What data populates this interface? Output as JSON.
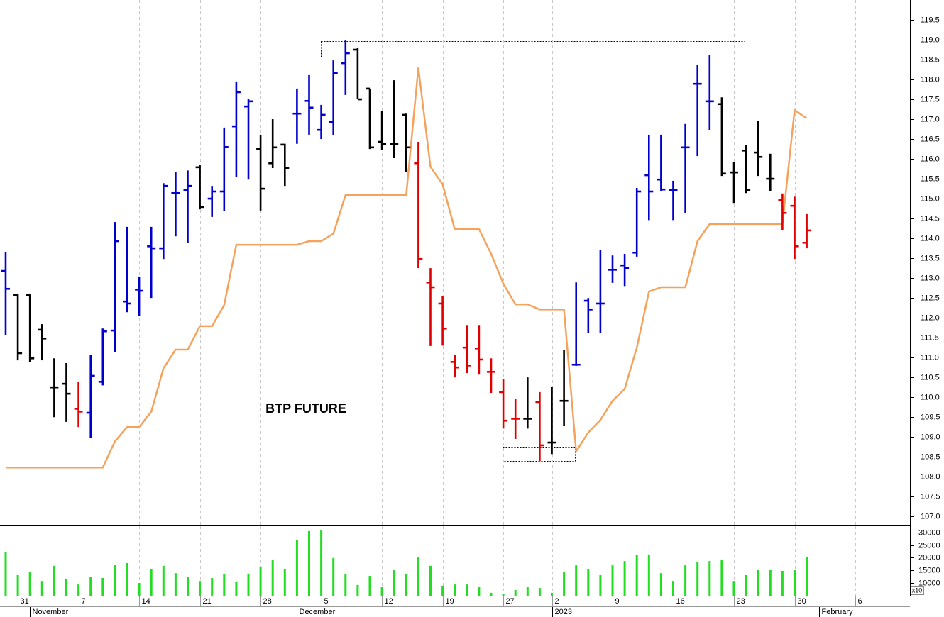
{
  "chart_data": {
    "type": "ohlc",
    "annotation": "BTP FUTURE",
    "categories": [
      null,
      "31",
      null,
      null,
      null,
      null,
      "7",
      null,
      null,
      null,
      null,
      "14",
      null,
      null,
      null,
      null,
      "21",
      null,
      null,
      null,
      null,
      "28",
      null,
      null,
      null,
      null,
      "5",
      null,
      null,
      null,
      null,
      "12",
      null,
      null,
      null,
      null,
      "19",
      null,
      null,
      null,
      null,
      "27",
      null,
      null,
      null,
      "2",
      null,
      null,
      null,
      null,
      "9",
      null,
      null,
      null,
      null,
      "16",
      null,
      null,
      null,
      null,
      "23",
      null,
      null,
      null,
      null,
      "30",
      null,
      null,
      null,
      null,
      "6"
    ],
    "month_labels": [
      null,
      null,
      "November",
      null,
      null,
      null,
      null,
      null,
      null,
      null,
      null,
      null,
      null,
      null,
      null,
      null,
      null,
      null,
      null,
      null,
      null,
      null,
      null,
      null,
      "December",
      null,
      null,
      null,
      null,
      null,
      null,
      null,
      null,
      null,
      null,
      null,
      null,
      null,
      null,
      null,
      null,
      null,
      null,
      null,
      null,
      "2023",
      null,
      null,
      null,
      null,
      null,
      null,
      null,
      null,
      null,
      null,
      null,
      null,
      null,
      null,
      null,
      null,
      null,
      null,
      null,
      null,
      null,
      "February",
      null,
      null,
      null
    ],
    "open": [
      113.18,
      112.57,
      112.57,
      111.7,
      110.25,
      110.34,
      109.71,
      109.61,
      110.39,
      111.68,
      112.41,
      112.71,
      113.8,
      113.75,
      115.14,
      115.21,
      115.79,
      115.0,
      115.18,
      116.82,
      117.32,
      116.25,
      115.89,
      116.36,
      117.14,
      117.46,
      116.73,
      116.93,
      118.41,
      118.75,
      117.77,
      116.43,
      116.38,
      117.11,
      115.89,
      112.89,
      112.36,
      110.89,
      111.25,
      111.23,
      110.64,
      110.13,
      109.46,
      109.46,
      109.88,
      108.86,
      109.91,
      110.82,
      112.43,
      112.36,
      113.21,
      113.32,
      113.64,
      115.59,
      115.48,
      115.21,
      116.29,
      117.89,
      117.45,
      117.38,
      115.66,
      116.21,
      116.16,
      115.5,
      114.96,
      114.82,
      113.89,
      null,
      null,
      null,
      null
    ],
    "high": [
      113.66,
      112.59,
      112.59,
      111.84,
      110.98,
      110.86,
      110.39,
      111.07,
      111.73,
      114.41,
      114.29,
      113.04,
      114.29,
      115.39,
      115.68,
      115.71,
      115.84,
      115.32,
      116.79,
      117.95,
      117.5,
      116.61,
      117.0,
      116.38,
      117.77,
      118.11,
      117.36,
      118.48,
      118.98,
      118.79,
      117.77,
      117.2,
      117.98,
      117.14,
      116.43,
      113.25,
      112.54,
      111.07,
      111.82,
      111.82,
      110.98,
      110.45,
      109.95,
      110.5,
      110.13,
      110.27,
      111.2,
      112.89,
      112.5,
      113.71,
      113.57,
      113.61,
      115.27,
      116.61,
      116.61,
      115.45,
      116.88,
      118.36,
      118.61,
      117.55,
      115.93,
      116.34,
      116.96,
      116.13,
      115.13,
      115.05,
      114.61,
      null,
      null,
      null,
      null
    ],
    "low": [
      111.57,
      110.93,
      110.89,
      110.93,
      109.5,
      109.38,
      109.25,
      108.98,
      110.3,
      111.13,
      112.14,
      112.05,
      112.5,
      113.48,
      114.05,
      113.88,
      114.73,
      114.54,
      114.68,
      115.55,
      115.48,
      114.7,
      115.77,
      115.32,
      116.38,
      116.61,
      116.5,
      116.59,
      117.61,
      117.5,
      116.25,
      116.23,
      116.02,
      115.68,
      113.25,
      111.29,
      111.3,
      110.5,
      110.61,
      110.57,
      110.11,
      109.21,
      108.95,
      109.21,
      108.39,
      108.57,
      109.29,
      110.79,
      111.61,
      111.61,
      112.88,
      112.8,
      113.54,
      114.46,
      115.18,
      114.46,
      114.64,
      116.07,
      116.73,
      115.57,
      114.89,
      115.14,
      115.57,
      115.18,
      114.2,
      113.48,
      113.75,
      null,
      null,
      null,
      null
    ],
    "close": [
      112.73,
      111.11,
      110.98,
      111.48,
      110.25,
      110.09,
      109.64,
      110.54,
      111.66,
      113.93,
      112.36,
      112.68,
      113.75,
      115.32,
      115.14,
      115.32,
      114.79,
      115.18,
      116.3,
      117.68,
      117.45,
      115.25,
      116.29,
      115.77,
      117.14,
      117.29,
      117.11,
      118.16,
      118.66,
      117.5,
      116.29,
      116.38,
      116.38,
      116.29,
      113.48,
      112.77,
      111.73,
      110.75,
      110.8,
      110.95,
      110.64,
      109.41,
      109.46,
      109.46,
      108.79,
      108.86,
      109.91,
      110.82,
      112.21,
      112.36,
      113.21,
      113.25,
      115.18,
      115.18,
      115.23,
      115.21,
      116.29,
      117.89,
      117.45,
      115.63,
      115.66,
      115.21,
      116.05,
      115.5,
      114.64,
      113.8,
      114.2,
      null,
      null,
      null,
      null
    ],
    "bar_colors": [
      "#0000cc",
      "#000000",
      "#000000",
      "#000000",
      "#000000",
      "#000000",
      "#e00000",
      "#0000cc",
      "#0000cc",
      "#0000cc",
      "#0000cc",
      "#0000cc",
      "#0000cc",
      "#0000cc",
      "#0000cc",
      "#0000cc",
      "#000000",
      "#0000cc",
      "#0000cc",
      "#0000cc",
      "#0000cc",
      "#000000",
      "#000000",
      "#000000",
      "#0000cc",
      "#0000cc",
      "#0000cc",
      "#0000cc",
      "#0000cc",
      "#000000",
      "#000000",
      "#000000",
      "#000000",
      "#000000",
      "#e00000",
      "#e00000",
      "#e00000",
      "#e00000",
      "#e00000",
      "#e00000",
      "#e00000",
      "#e00000",
      "#e00000",
      "#000000",
      "#e00000",
      "#000000",
      "#000000",
      "#0000cc",
      "#0000cc",
      "#0000cc",
      "#0000cc",
      "#0000cc",
      "#0000cc",
      "#0000cc",
      "#0000cc",
      "#0000cc",
      "#0000cc",
      "#0000cc",
      "#0000cc",
      "#000000",
      "#000000",
      "#000000",
      "#000000",
      "#000000",
      "#e00000",
      "#e00000",
      "#e00000",
      null,
      null,
      null,
      null
    ],
    "line": {
      "color": "#f5a25d",
      "values": [
        108.23,
        108.23,
        108.23,
        108.23,
        108.23,
        108.23,
        108.23,
        108.23,
        108.23,
        108.89,
        109.25,
        109.25,
        109.64,
        110.73,
        111.2,
        111.2,
        111.79,
        111.79,
        112.32,
        113.84,
        113.84,
        113.84,
        113.84,
        113.84,
        113.84,
        113.93,
        113.93,
        114.12,
        115.09,
        115.09,
        115.09,
        115.09,
        115.09,
        115.09,
        118.29,
        115.8,
        115.36,
        114.23,
        114.23,
        114.23,
        113.61,
        112.86,
        112.34,
        112.34,
        112.21,
        112.21,
        112.21,
        108.64,
        109.11,
        109.43,
        109.91,
        110.21,
        111.25,
        112.66,
        112.77,
        112.77,
        112.77,
        113.93,
        114.36,
        114.36,
        114.36,
        114.36,
        114.36,
        114.36,
        114.36,
        117.23,
        117.02,
        null,
        null,
        null,
        null
      ]
    },
    "ylim": [
      106.79,
      120.0
    ],
    "yticks": [
      {
        "value": 107,
        "label": "107.0"
      },
      {
        "value": 107.5,
        "label": "107.5"
      },
      {
        "value": 108,
        "label": "108.0"
      },
      {
        "value": 108.5,
        "label": "108.5"
      },
      {
        "value": 109,
        "label": "109.0"
      },
      {
        "value": 109.5,
        "label": "109.5"
      },
      {
        "value": 110,
        "label": "110.0"
      },
      {
        "value": 110.5,
        "label": "110.5"
      },
      {
        "value": 111,
        "label": "111.0"
      },
      {
        "value": 111.5,
        "label": "111.5"
      },
      {
        "value": 112,
        "label": "112.0"
      },
      {
        "value": 112.5,
        "label": "112.5"
      },
      {
        "value": 113,
        "label": "113.0"
      },
      {
        "value": 113.5,
        "label": "113.5"
      },
      {
        "value": 114,
        "label": "114.0"
      },
      {
        "value": 114.5,
        "label": "114.5"
      },
      {
        "value": 115,
        "label": "115.0"
      },
      {
        "value": 115.5,
        "label": "115.5"
      },
      {
        "value": 116,
        "label": "116.0"
      },
      {
        "value": 116.5,
        "label": "116.5"
      },
      {
        "value": 117,
        "label": "117.0"
      },
      {
        "value": 117.5,
        "label": "117.5"
      },
      {
        "value": 118,
        "label": "118.0"
      },
      {
        "value": 118.5,
        "label": "118.5"
      },
      {
        "value": 119,
        "label": "119.0"
      },
      {
        "value": 119.5,
        "label": "119.5"
      }
    ],
    "grid": true,
    "volume": {
      "color": "#22dd22",
      "multiplier_label": "x10",
      "values": [
        22100,
        13100,
        14500,
        10800,
        16800,
        11700,
        9400,
        12300,
        12000,
        17300,
        17900,
        10000,
        15400,
        16800,
        13900,
        12300,
        10800,
        12000,
        13700,
        10600,
        13700,
        16500,
        19000,
        15600,
        26900,
        30600,
        31100,
        19900,
        13400,
        9200,
        12800,
        8300,
        15100,
        13400,
        20100,
        16800,
        8900,
        9400,
        9400,
        8600,
        6100,
        5500,
        7200,
        8300,
        8000,
        6100,
        14500,
        17000,
        15600,
        13100,
        17000,
        18700,
        21000,
        21300,
        13900,
        10800,
        17000,
        18500,
        18700,
        19000,
        10800,
        13100,
        15100,
        15100,
        14800,
        15100,
        20400,
        null,
        null,
        null,
        null
      ],
      "ylim": [
        4930,
        32530
      ],
      "yticks": [
        10000,
        15000,
        20000,
        25000,
        30000
      ]
    }
  }
}
